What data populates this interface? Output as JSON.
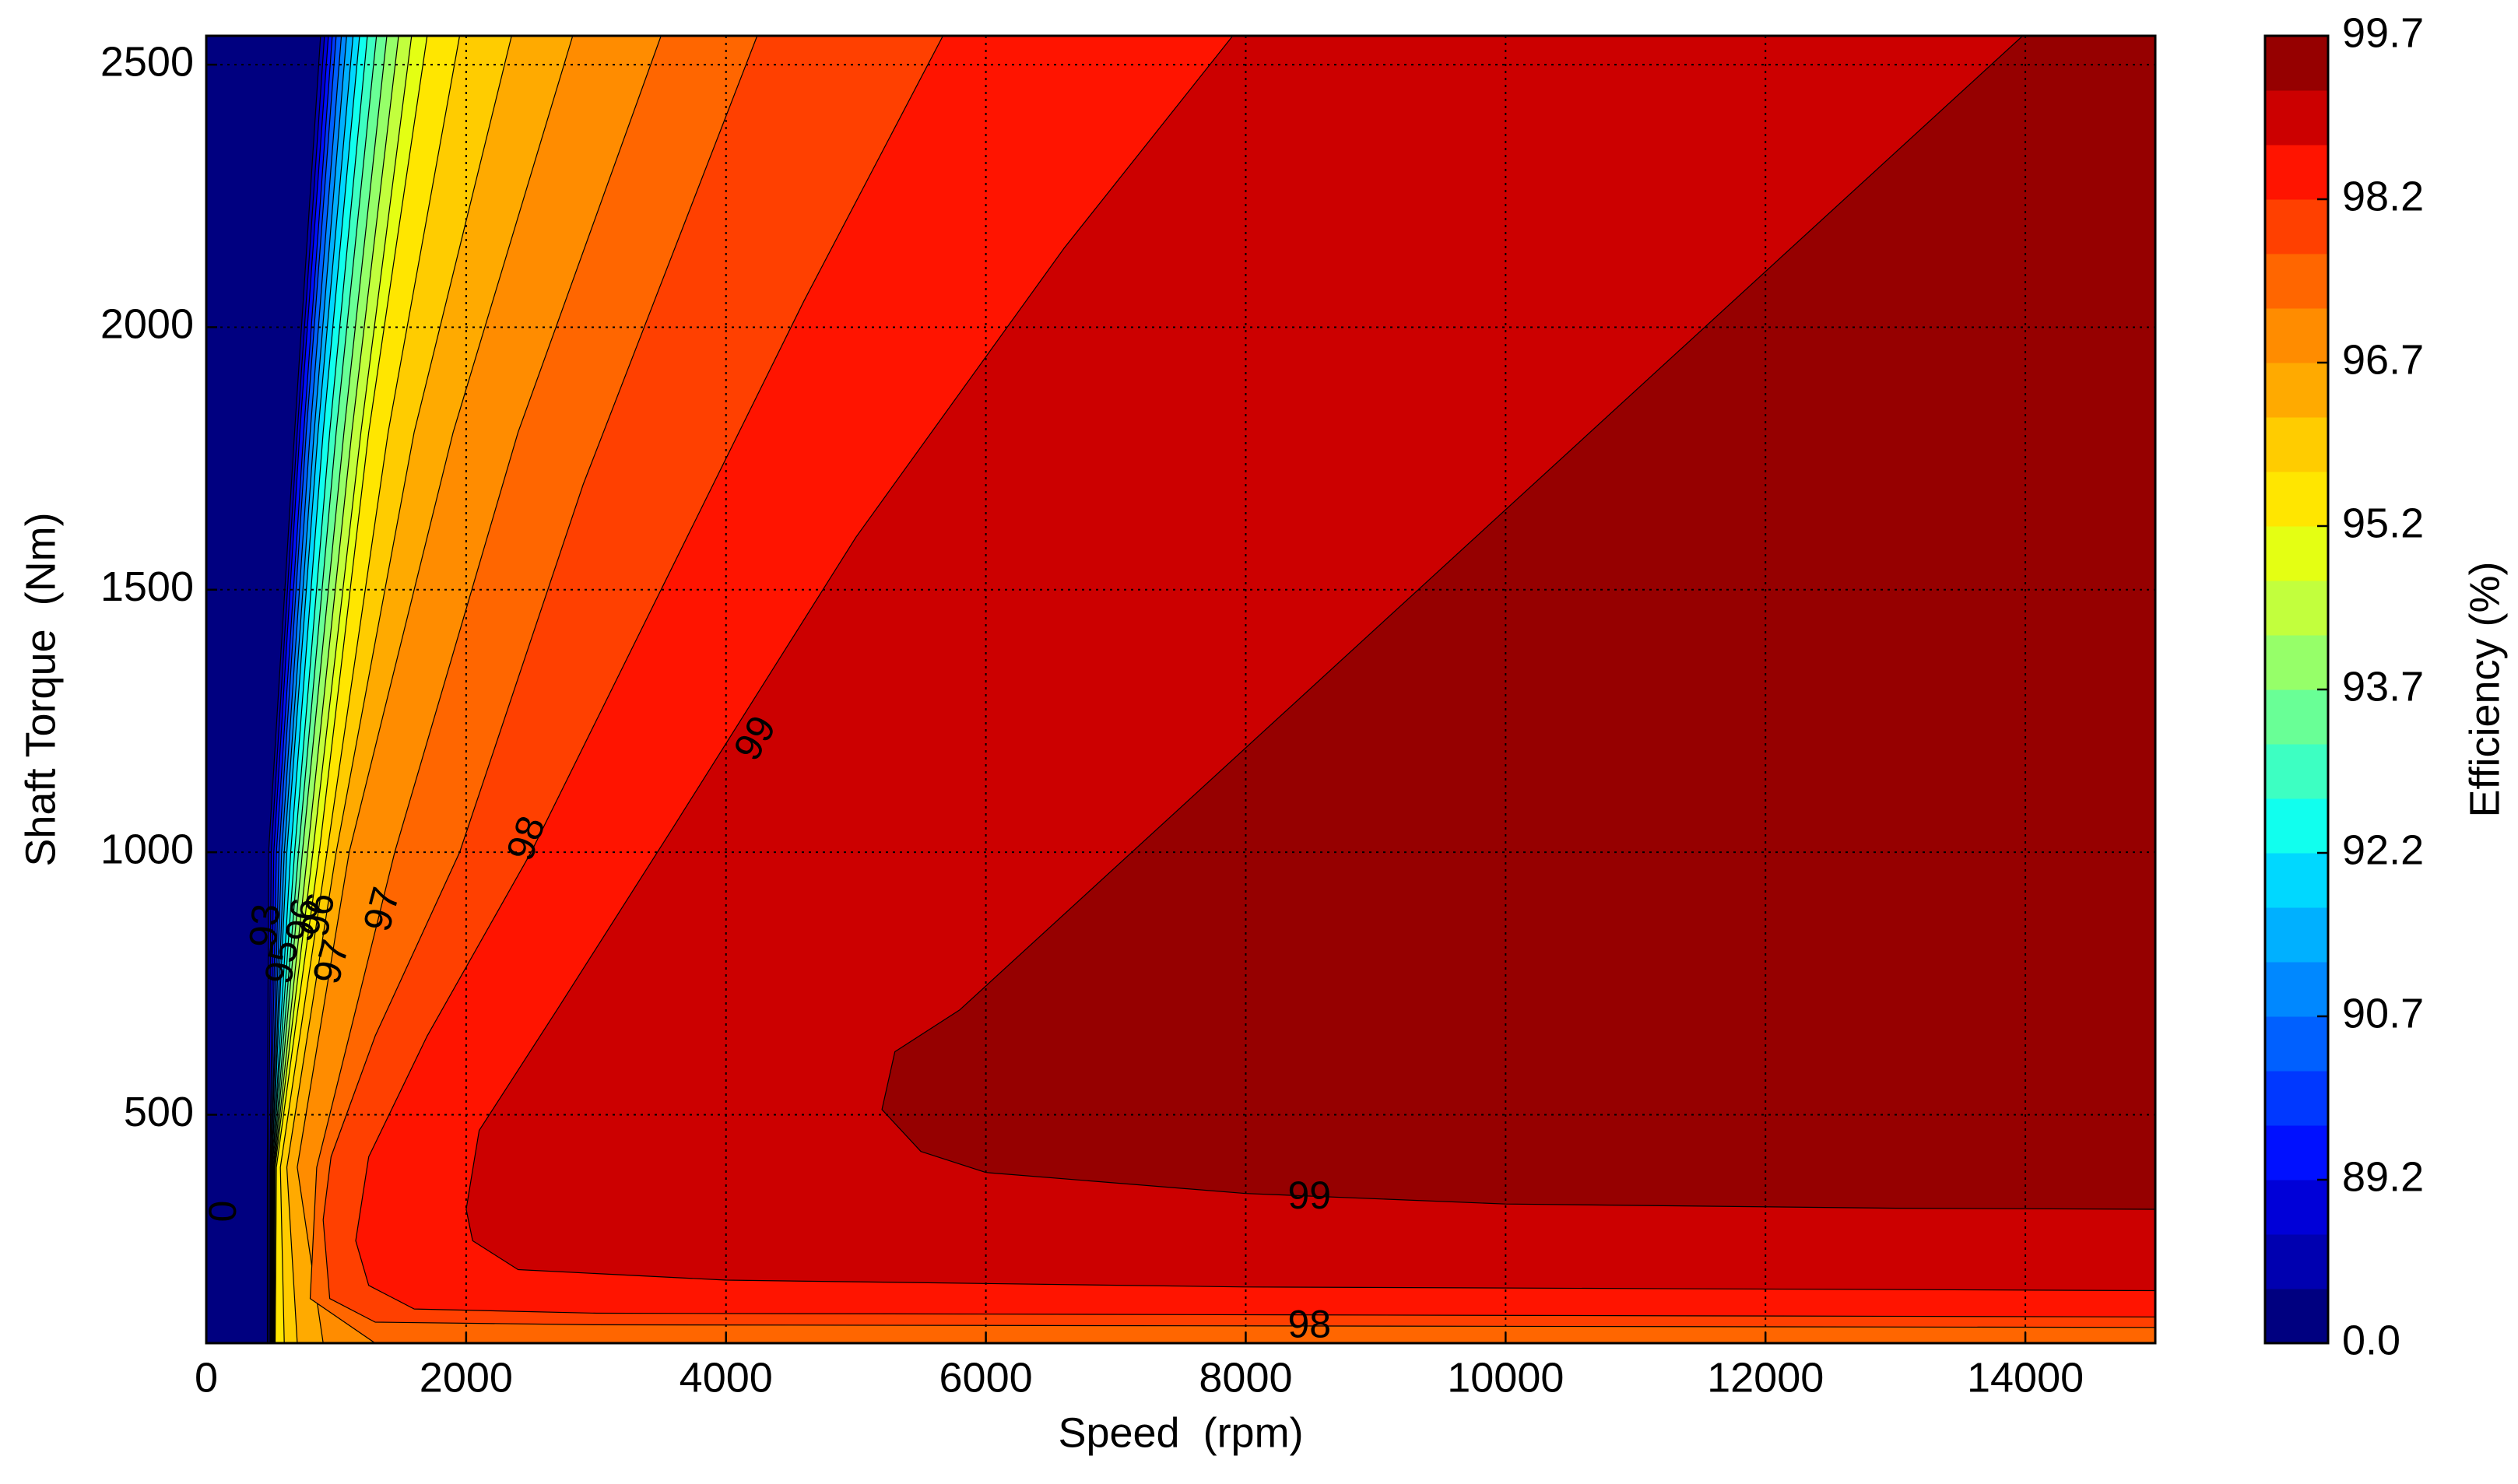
{
  "chart_data": {
    "type": "contourf",
    "xlabel": "Speed  (rpm)",
    "ylabel": "Shaft Torque  (Nm)",
    "xlim": [
      0,
      15000
    ],
    "ylim": [
      65,
      2555
    ],
    "xticks": [
      0,
      2000,
      4000,
      6000,
      8000,
      10000,
      12000,
      14000
    ],
    "yticks": [
      500,
      1000,
      1500,
      2000,
      2500
    ],
    "grid": true,
    "colorbar": {
      "label": "Efficiency (%)",
      "levels": [
        0,
        88.2,
        88.7,
        89.2,
        89.7,
        90.2,
        90.7,
        91.2,
        91.7,
        92.2,
        92.7,
        93.2,
        93.7,
        94.2,
        94.7,
        95.2,
        95.7,
        96.2,
        96.7,
        97.2,
        97.7,
        98.2,
        98.7,
        99.2,
        99.7
      ],
      "colors": [
        "#000080",
        "#0000b0",
        "#0000d8",
        "#0010ff",
        "#0038ff",
        "#0060ff",
        "#0088ff",
        "#00b0ff",
        "#00d8ff",
        "#11ffee",
        "#3dffc2",
        "#69ff96",
        "#96ff69",
        "#c2ff3d",
        "#e4ff13",
        "#ffe600",
        "#ffcc00",
        "#ffaa00",
        "#ff8c00",
        "#ff6600",
        "#ff4000",
        "#ff1400",
        "#cc0000",
        "#960000"
      ],
      "ticks": [
        {
          "value": 0,
          "label": "0.0"
        },
        89.2,
        90.7,
        92.2,
        93.7,
        95.2,
        96.7,
        98.2,
        99.7
      ]
    },
    "regions": [
      {
        "level": 0,
        "points": [
          [
            0,
            65
          ],
          [
            0,
            2555
          ],
          [
            15000,
            2555
          ],
          [
            15000,
            65
          ]
        ]
      },
      {
        "level": 88.2,
        "points": [
          [
            470,
            65
          ],
          [
            470,
            400
          ],
          [
            480,
            1000
          ],
          [
            680,
            1800
          ],
          [
            880,
            2555
          ],
          [
            15000,
            2555
          ],
          [
            15000,
            65
          ]
        ]
      },
      {
        "level": 88.7,
        "points": [
          [
            480,
            65
          ],
          [
            480,
            400
          ],
          [
            500,
            1000
          ],
          [
            700,
            1800
          ],
          [
            910,
            2555
          ],
          [
            15000,
            2555
          ],
          [
            15000,
            65
          ]
        ]
      },
      {
        "level": 89.2,
        "points": [
          [
            490,
            65
          ],
          [
            490,
            400
          ],
          [
            520,
            1000
          ],
          [
            720,
            1800
          ],
          [
            940,
            2555
          ],
          [
            15000,
            2555
          ],
          [
            15000,
            65
          ]
        ]
      },
      {
        "level": 89.7,
        "points": [
          [
            495,
            65
          ],
          [
            495,
            400
          ],
          [
            540,
            1000
          ],
          [
            750,
            1800
          ],
          [
            970,
            2555
          ],
          [
            15000,
            2555
          ],
          [
            15000,
            65
          ]
        ]
      },
      {
        "level": 90.2,
        "points": [
          [
            500,
            65
          ],
          [
            500,
            400
          ],
          [
            560,
            1000
          ],
          [
            770,
            1800
          ],
          [
            1000,
            2555
          ],
          [
            15000,
            2555
          ],
          [
            15000,
            65
          ]
        ]
      },
      {
        "level": 90.7,
        "points": [
          [
            500,
            65
          ],
          [
            500,
            400
          ],
          [
            580,
            1000
          ],
          [
            800,
            1800
          ],
          [
            1040,
            2555
          ],
          [
            15000,
            2555
          ],
          [
            15000,
            65
          ]
        ]
      },
      {
        "level": 91.2,
        "points": [
          [
            505,
            65
          ],
          [
            505,
            400
          ],
          [
            600,
            1000
          ],
          [
            830,
            1800
          ],
          [
            1080,
            2555
          ],
          [
            15000,
            2555
          ],
          [
            15000,
            65
          ]
        ]
      },
      {
        "level": 91.7,
        "points": [
          [
            505,
            65
          ],
          [
            505,
            400
          ],
          [
            620,
            1000
          ],
          [
            860,
            1800
          ],
          [
            1130,
            2555
          ],
          [
            15000,
            2555
          ],
          [
            15000,
            65
          ]
        ]
      },
      {
        "level": 92.2,
        "points": [
          [
            510,
            65
          ],
          [
            510,
            400
          ],
          [
            650,
            1000
          ],
          [
            900,
            1800
          ],
          [
            1180,
            2555
          ],
          [
            15000,
            2555
          ],
          [
            15000,
            65
          ]
        ]
      },
      {
        "level": 92.7,
        "points": [
          [
            510,
            65
          ],
          [
            510,
            400
          ],
          [
            680,
            1000
          ],
          [
            950,
            1800
          ],
          [
            1240,
            2555
          ],
          [
            15000,
            2555
          ],
          [
            15000,
            65
          ]
        ]
      },
      {
        "level": 93.2,
        "points": [
          [
            515,
            65
          ],
          [
            515,
            400
          ],
          [
            710,
            1000
          ],
          [
            1000,
            1800
          ],
          [
            1310,
            2555
          ],
          [
            15000,
            2555
          ],
          [
            15000,
            65
          ]
        ]
      },
      {
        "level": 93.7,
        "points": [
          [
            515,
            65
          ],
          [
            520,
            400
          ],
          [
            740,
            1000
          ],
          [
            1060,
            1800
          ],
          [
            1390,
            2555
          ],
          [
            15000,
            2555
          ],
          [
            15000,
            65
          ]
        ]
      },
      {
        "level": 94.2,
        "points": [
          [
            520,
            65
          ],
          [
            525,
            400
          ],
          [
            780,
            1000
          ],
          [
            1120,
            1800
          ],
          [
            1480,
            2555
          ],
          [
            15000,
            2555
          ],
          [
            15000,
            65
          ]
        ]
      },
      {
        "level": 94.7,
        "points": [
          [
            525,
            65
          ],
          [
            530,
            400
          ],
          [
            820,
            1000
          ],
          [
            1190,
            1800
          ],
          [
            1580,
            2555
          ],
          [
            15000,
            2555
          ],
          [
            15000,
            65
          ]
        ]
      },
      {
        "level": 95.2,
        "points": [
          [
            530,
            65
          ],
          [
            540,
            400
          ],
          [
            870,
            1000
          ],
          [
            1250,
            1800
          ],
          [
            1700,
            2555
          ],
          [
            15000,
            2555
          ],
          [
            15000,
            65
          ]
        ]
      },
      {
        "level": 95.7,
        "points": [
          [
            600,
            65
          ],
          [
            570,
            400
          ],
          [
            930,
            1000
          ],
          [
            1400,
            1800
          ],
          [
            1950,
            2555
          ],
          [
            15000,
            2555
          ],
          [
            15000,
            65
          ]
        ]
      },
      {
        "level": 96.2,
        "points": [
          [
            700,
            65
          ],
          [
            620,
            400
          ],
          [
            1000,
            1000
          ],
          [
            1600,
            1800
          ],
          [
            2350,
            2555
          ],
          [
            15000,
            2555
          ],
          [
            15000,
            65
          ]
        ]
      },
      {
        "level": 96.7,
        "points": [
          [
            900,
            65
          ],
          [
            700,
            400
          ],
          [
            1100,
            1000
          ],
          [
            1900,
            1800
          ],
          [
            2820,
            2555
          ],
          [
            15000,
            2555
          ],
          [
            15000,
            65
          ]
        ]
      },
      {
        "level": 97.2,
        "points": [
          [
            1300,
            65
          ],
          [
            800,
            150
          ],
          [
            850,
            400
          ],
          [
            1450,
            1000
          ],
          [
            2400,
            1800
          ],
          [
            3500,
            2555
          ],
          [
            15000,
            2555
          ],
          [
            15000,
            65
          ]
        ]
      },
      {
        "level": 97.7,
        "points": [
          [
            15000,
            95
          ],
          [
            3000,
            100
          ],
          [
            1300,
            105
          ],
          [
            950,
            150
          ],
          [
            900,
            300
          ],
          [
            960,
            420
          ],
          [
            1300,
            650
          ],
          [
            1950,
            1000
          ],
          [
            2900,
            1700
          ],
          [
            4240,
            2555
          ],
          [
            15000,
            2555
          ]
        ]
      },
      {
        "level": 98.2,
        "points": [
          [
            5670,
            2555
          ],
          [
            15000,
            2555
          ],
          [
            15000,
            115
          ],
          [
            3000,
            122
          ],
          [
            1600,
            130
          ],
          [
            1250,
            175
          ],
          [
            1150,
            260
          ],
          [
            1250,
            420
          ],
          [
            1700,
            650
          ],
          [
            2500,
            1000
          ],
          [
            3500,
            1500
          ],
          [
            4600,
            2050
          ]
        ]
      },
      {
        "level": 98.7,
        "points": [
          [
            7900,
            2555
          ],
          [
            15000,
            2555
          ],
          [
            15000,
            165
          ],
          [
            8000,
            172
          ],
          [
            4000,
            185
          ],
          [
            2400,
            205
          ],
          [
            2050,
            260
          ],
          [
            2000,
            320
          ],
          [
            2100,
            470
          ],
          [
            2700,
            700
          ],
          [
            3600,
            1050
          ],
          [
            5000,
            1600
          ],
          [
            6600,
            2150
          ]
        ]
      },
      {
        "level": 99.2,
        "points": [
          [
            13980,
            2555
          ],
          [
            15000,
            2555
          ],
          [
            15000,
            320
          ],
          [
            13000,
            322
          ],
          [
            10000,
            330
          ],
          [
            8000,
            350
          ],
          [
            6000,
            390
          ],
          [
            5500,
            430
          ],
          [
            5200,
            510
          ],
          [
            5300,
            620
          ],
          [
            5800,
            700
          ]
        ]
      }
    ],
    "annotations": [
      {
        "text": "0",
        "x": 150,
        "y": 316
      },
      {
        "text": "99",
        "x": 4240,
        "y": 1215
      },
      {
        "text": "98",
        "x": 2480,
        "y": 1025
      },
      {
        "text": "97",
        "x": 1370,
        "y": 890
      },
      {
        "text": "97",
        "x": 980,
        "y": 790
      },
      {
        "text": "96",
        "x": 880,
        "y": 880
      },
      {
        "text": "96",
        "x": 760,
        "y": 870
      },
      {
        "text": "95",
        "x": 600,
        "y": 790
      },
      {
        "text": "93",
        "x": 470,
        "y": 860
      },
      {
        "text": "99",
        "x": 8490,
        "y": 341
      },
      {
        "text": "98",
        "x": 8490,
        "y": 96
      }
    ]
  }
}
